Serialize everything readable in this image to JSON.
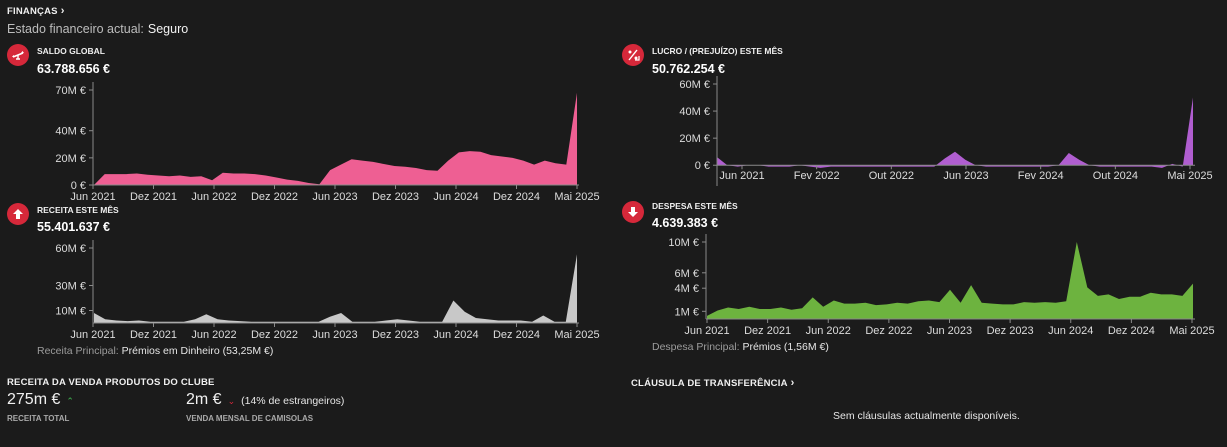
{
  "header": {
    "title": "FINANÇAS",
    "chevron": "›"
  },
  "status": {
    "label": "Estado financeiro actual:",
    "value": "Seguro"
  },
  "panels": {
    "saldo": {
      "title": "SALDO GLOBAL",
      "value": "63.788.656 €",
      "icon": "balance-scale-icon",
      "color": "#ee5f93",
      "y_ticks": [
        {
          "label": "70M €",
          "value": 70
        },
        {
          "label": "40M €",
          "value": 40
        },
        {
          "label": "20M €",
          "value": 20
        },
        {
          "label": "0 €",
          "value": 0
        }
      ],
      "x_ticks": [
        "Jun 2021",
        "Dez 2021",
        "Jun 2022",
        "Dez 2022",
        "Jun 2023",
        "Dez 2023",
        "Jun 2024",
        "Dez 2024",
        "Mai 2025"
      ]
    },
    "lucro": {
      "title": "LUCRO / (PREJUÍZO) ESTE MÊS",
      "value": "50.762.254 €",
      "icon": "percent-down-icon",
      "color": "#b05ed0",
      "y_ticks": [
        {
          "label": "60M €",
          "value": 60
        },
        {
          "label": "40M €",
          "value": 40
        },
        {
          "label": "20M €",
          "value": 20
        },
        {
          "label": "0 €",
          "value": 0
        }
      ],
      "x_ticks": [
        "Jun 2021",
        "Fev 2022",
        "Out 2022",
        "Jun 2023",
        "Fev 2024",
        "Out 2024",
        "Mai 2025"
      ]
    },
    "receita": {
      "title": "RECEITA ESTE MÊS",
      "value": "55.401.637 €",
      "icon": "arrow-up-icon",
      "color": "#c8c8c8",
      "y_ticks": [
        {
          "label": "60M €",
          "value": 60
        },
        {
          "label": "30M €",
          "value": 30
        },
        {
          "label": "10M €",
          "value": 10
        }
      ],
      "x_ticks": [
        "Jun 2021",
        "Dez 2021",
        "Jun 2022",
        "Dez 2022",
        "Jun 2023",
        "Dez 2023",
        "Jun 2024",
        "Dez 2024",
        "Mai 2025"
      ],
      "note_label": "Receita Principal:",
      "note_value": "Prémios em Dinheiro (53,25M €)"
    },
    "despesa": {
      "title": "DESPESA ESTE MÊS",
      "value": "4.639.383 €",
      "icon": "arrow-down-icon",
      "color": "#6db33f",
      "y_ticks": [
        {
          "label": "10M €",
          "value": 10
        },
        {
          "label": "6M €",
          "value": 6
        },
        {
          "label": "4M €",
          "value": 4
        },
        {
          "label": "1M €",
          "value": 1
        }
      ],
      "x_ticks": [
        "Jun 2021",
        "Dez 2021",
        "Jun 2022",
        "Dez 2022",
        "Jun 2023",
        "Dez 2023",
        "Jun 2024",
        "Dez 2024",
        "Mai 2025"
      ],
      "note_label": "Despesa Principal:",
      "note_value": "Prémios (1,56M €)"
    }
  },
  "chart_data": [
    {
      "type": "area",
      "title": "SALDO GLOBAL",
      "ylim": [
        0,
        70
      ],
      "unit": "M €",
      "x_start": "Mai 2021",
      "x_end": "Mai 2025",
      "values": [
        0,
        8,
        8,
        8,
        8.5,
        7.5,
        7,
        6.5,
        7,
        6,
        6.5,
        3.5,
        9,
        8.5,
        8.5,
        8,
        7,
        5.5,
        4,
        3,
        1.5,
        0.5,
        11,
        15,
        19,
        18,
        17,
        15.5,
        14,
        13.5,
        12.5,
        11,
        10.5,
        18,
        24,
        25,
        24.5,
        22,
        21,
        20,
        18,
        15,
        18,
        16,
        15,
        68
      ]
    },
    {
      "type": "area",
      "title": "LUCRO / (PREJUÍZO) ESTE MÊS",
      "ylim": [
        -5,
        60
      ],
      "unit": "M €",
      "x_start": "Mai 2021",
      "x_end": "Mai 2025",
      "values": [
        6,
        0,
        -1,
        0,
        0,
        -1,
        -1,
        -1,
        0,
        -1,
        -2,
        -1,
        -1,
        -1,
        -1,
        -1,
        -1,
        -1,
        -1,
        -1,
        -1,
        -1,
        5,
        10,
        4,
        0,
        -1,
        -1,
        -1,
        -1,
        -1,
        -1,
        -1,
        0,
        9,
        4,
        0,
        -1,
        -1,
        -1,
        -1,
        -1,
        -1,
        -2,
        1,
        -1,
        50
      ]
    },
    {
      "type": "area",
      "title": "RECEITA ESTE MÊS",
      "ylim": [
        0,
        60
      ],
      "unit": "M €",
      "x_start": "Mai 2021",
      "x_end": "Mai 2025",
      "values": [
        8,
        3,
        2,
        1.5,
        2,
        1,
        1,
        1,
        1,
        3,
        7,
        3,
        2,
        1.5,
        1,
        1,
        1,
        1,
        1,
        1,
        1,
        5,
        8,
        1,
        1,
        1,
        2,
        3,
        2,
        1,
        1,
        1,
        18,
        9,
        4,
        3,
        2,
        2,
        2,
        1,
        6,
        1,
        1,
        55
      ]
    },
    {
      "type": "area",
      "title": "DESPESA ESTE MÊS",
      "ylim": [
        0,
        10
      ],
      "unit": "M €",
      "x_start": "Mai 2021",
      "x_end": "Mai 2025",
      "values": [
        0.4,
        1.1,
        1.5,
        1.3,
        1.6,
        1.3,
        1.3,
        1.5,
        1.2,
        1.4,
        2.8,
        1.6,
        2.4,
        2.0,
        2.0,
        2.1,
        1.8,
        1.9,
        2.1,
        2.0,
        2.3,
        2.4,
        2.2,
        3.8,
        2.1,
        4.4,
        2.1,
        2.0,
        1.9,
        1.9,
        2.2,
        2.1,
        2.2,
        2.1,
        2.3,
        10.0,
        4.1,
        3.0,
        3.2,
        2.6,
        2.9,
        2.9,
        3.4,
        3.2,
        3.2,
        3.0,
        4.6
      ]
    }
  ],
  "merch": {
    "title": "RECEITA DA VENDA PRODUTOS DO CLUBE",
    "total_value": "275m €",
    "total_label": "RECEITA TOTAL",
    "total_trend": "up",
    "shirts_value": "2m €",
    "shirts_pct": "(14% de estrangeiros)",
    "shirts_label": "VENDA MENSAL DE CAMISOLAS",
    "shirts_trend": "down"
  },
  "transfer": {
    "title": "CLÁUSULA DE TRANSFERÊNCIA",
    "chevron": "›",
    "empty": "Sem cláusulas actualmente disponíveis."
  }
}
